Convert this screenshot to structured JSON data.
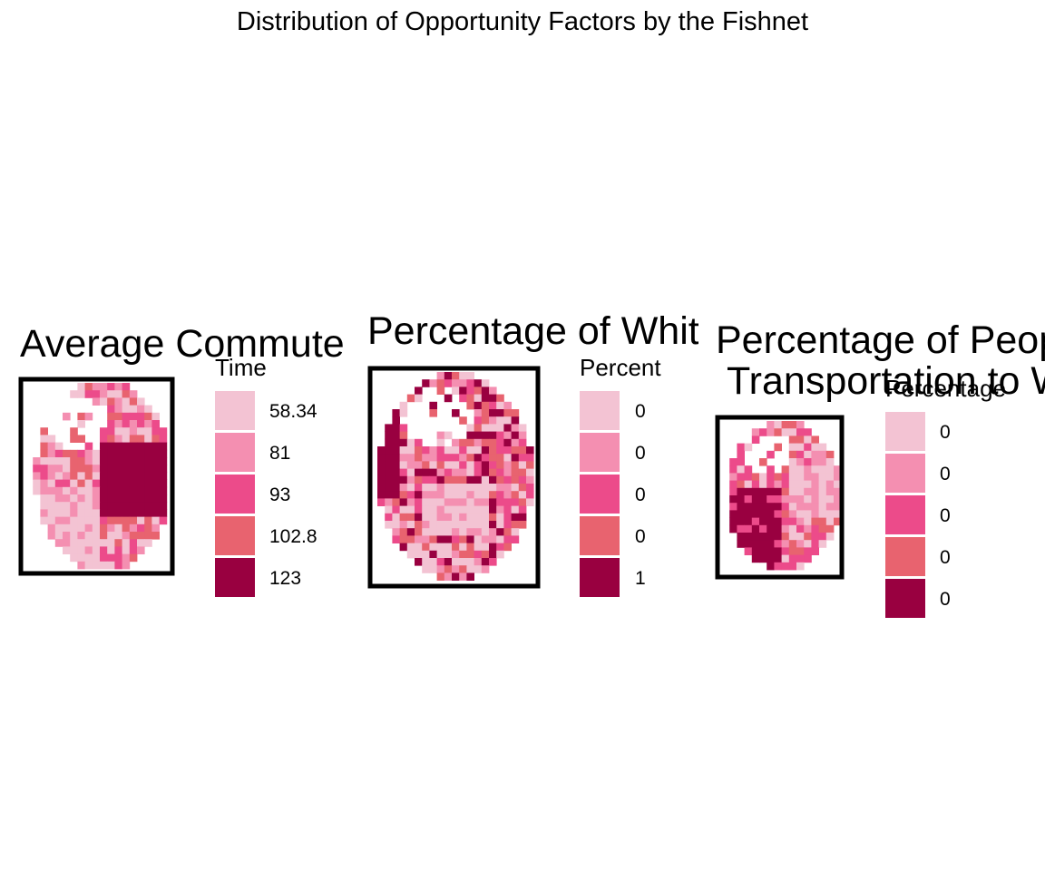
{
  "page": {
    "title": "Distribution of Opportunity Factors by the Fishnet"
  },
  "chart_data": [
    {
      "type": "heatmap",
      "title": "Average Commute",
      "legend": {
        "title": "Time",
        "labels": [
          "58.34",
          "81",
          "93",
          "102.8",
          "123"
        ],
        "colors": [
          "#f3c3d3",
          "#f48fb1",
          "#ec4b8a",
          "#e8636f",
          "#990040"
        ]
      }
    },
    {
      "type": "heatmap",
      "title": "Percentage of Whit",
      "legend": {
        "title": "Percent",
        "labels": [
          "0",
          "0",
          "0",
          "0",
          "1"
        ],
        "colors": [
          "#f3c3d3",
          "#f48fb1",
          "#ec4b8a",
          "#e8636f",
          "#990040"
        ]
      }
    },
    {
      "type": "heatmap",
      "title": "Percentage of Peop\nTransportation to W",
      "title_lines": [
        "Percentage of Peop",
        "Transportation to W"
      ],
      "legend": {
        "title": "Percentage",
        "labels": [
          "0",
          "0",
          "0",
          "0",
          "0"
        ],
        "colors": [
          "#f3c3d3",
          "#f48fb1",
          "#ec4b8a",
          "#e8636f",
          "#990040"
        ]
      }
    }
  ]
}
